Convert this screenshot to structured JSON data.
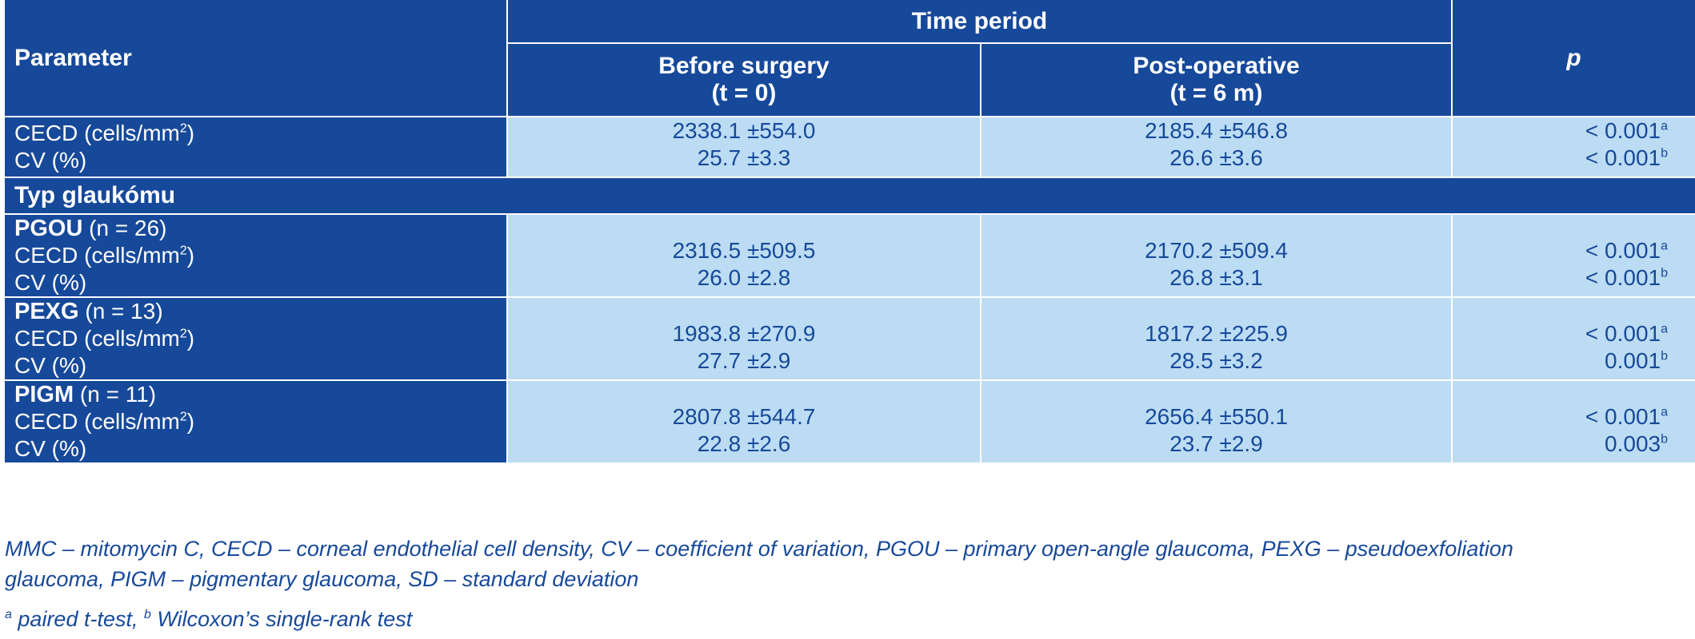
{
  "header": {
    "parameter": "Parameter",
    "time_period": "Time period",
    "before_line1": "Before surgery",
    "before_line2": "(t = 0)",
    "post_line1": "Post-operative",
    "post_line2": "(t = 6 m)",
    "p": "p"
  },
  "overall": {
    "cecd_label": "CECD (cells/mm",
    "cecd_sup": "2",
    "cecd_label_end": ")",
    "cv_label": "CV (%)",
    "cecd_before": "2338.1 ±554.0",
    "cv_before": "25.7 ±3.3",
    "cecd_post": "2185.4 ±546.8",
    "cv_post": "26.6 ±3.6",
    "cecd_p": "< 0.001",
    "cecd_p_sup": "a",
    "cv_p": "< 0.001",
    "cv_p_sup": "b"
  },
  "section_title": "Typ glaukómu",
  "groups": [
    {
      "name": "PGOU",
      "n": " (n = 26)",
      "cecd_before": "2316.5 ±509.5",
      "cv_before": "26.0 ±2.8",
      "cecd_post": "2170.2 ±509.4",
      "cv_post": "26.8 ±3.1",
      "cecd_p": "< 0.001",
      "cecd_p_sup": "a",
      "cv_p": "< 0.001",
      "cv_p_sup": "b"
    },
    {
      "name": "PEXG",
      "n": " (n = 13)",
      "cecd_before": "1983.8 ±270.9",
      "cv_before": "27.7 ±2.9",
      "cecd_post": "1817.2 ±225.9",
      "cv_post": "28.5 ±3.2",
      "cecd_p": "< 0.001",
      "cecd_p_sup": "a",
      "cv_p": "0.001",
      "cv_p_sup": "b"
    },
    {
      "name": "PIGM",
      "n": " (n = 11)",
      "cecd_before": "2807.8 ±544.7",
      "cv_before": "22.8 ±2.6",
      "cecd_post": "2656.4 ±550.1",
      "cv_post": "23.7 ±2.9",
      "cecd_p": "< 0.001",
      "cecd_p_sup": "a",
      "cv_p": "0.003",
      "cv_p_sup": "b"
    }
  ],
  "footnotes": {
    "abbreviations_line1": "MMC – mitomycin C, CECD – corneal endothelial cell density, CV – coefficient of variation, PGOU – primary open-angle glaucoma, PEXG – pseudoexfoliation",
    "abbreviations_line2": "glaucoma, PIGM – pigmentary glaucoma, SD – standard deviation",
    "sup_a": "a",
    "test_a": " paired t-test, ",
    "sup_b": "b",
    "test_b": " Wilcoxon’s single-rank test"
  },
  "colors": {
    "header_bg": "#17499a",
    "cell_bg": "#bcdcf3",
    "text_dark": "#17499a"
  }
}
